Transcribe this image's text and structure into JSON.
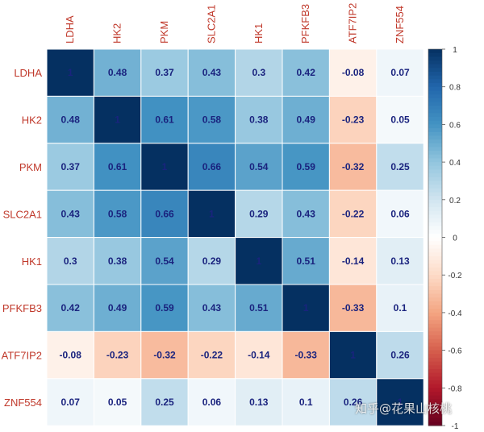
{
  "chart_data": {
    "type": "heatmap",
    "variables": [
      "LDHA",
      "HK2",
      "PKM",
      "SLC2A1",
      "HK1",
      "PFKFB3",
      "ATF7IP2",
      "ZNF554"
    ],
    "matrix": [
      [
        1,
        0.48,
        0.37,
        0.43,
        0.3,
        0.42,
        -0.08,
        0.07
      ],
      [
        0.48,
        1,
        0.61,
        0.58,
        0.38,
        0.49,
        -0.23,
        0.05
      ],
      [
        0.37,
        0.61,
        1,
        0.66,
        0.54,
        0.59,
        -0.32,
        0.25
      ],
      [
        0.43,
        0.58,
        0.66,
        1,
        0.29,
        0.43,
        -0.22,
        0.06
      ],
      [
        0.3,
        0.38,
        0.54,
        0.29,
        1,
        0.51,
        -0.14,
        0.13
      ],
      [
        0.42,
        0.49,
        0.59,
        0.43,
        0.51,
        1,
        -0.33,
        0.1
      ],
      [
        -0.08,
        -0.23,
        -0.32,
        -0.22,
        -0.14,
        -0.33,
        1,
        0.26
      ],
      [
        0.07,
        0.05,
        0.25,
        0.06,
        0.13,
        0.1,
        0.26,
        1
      ]
    ],
    "color_scale": {
      "range": [
        -1,
        1
      ],
      "ticks": [
        -1,
        -0.8,
        -0.6,
        -0.4,
        -0.2,
        0,
        0.2,
        0.4,
        0.6,
        0.8,
        1
      ],
      "negative_color": "#b2182b",
      "mid_color": "#ffffff",
      "positive_color": "#053061"
    },
    "grid": true
  },
  "watermark_text": "知乎@花果山核桃"
}
